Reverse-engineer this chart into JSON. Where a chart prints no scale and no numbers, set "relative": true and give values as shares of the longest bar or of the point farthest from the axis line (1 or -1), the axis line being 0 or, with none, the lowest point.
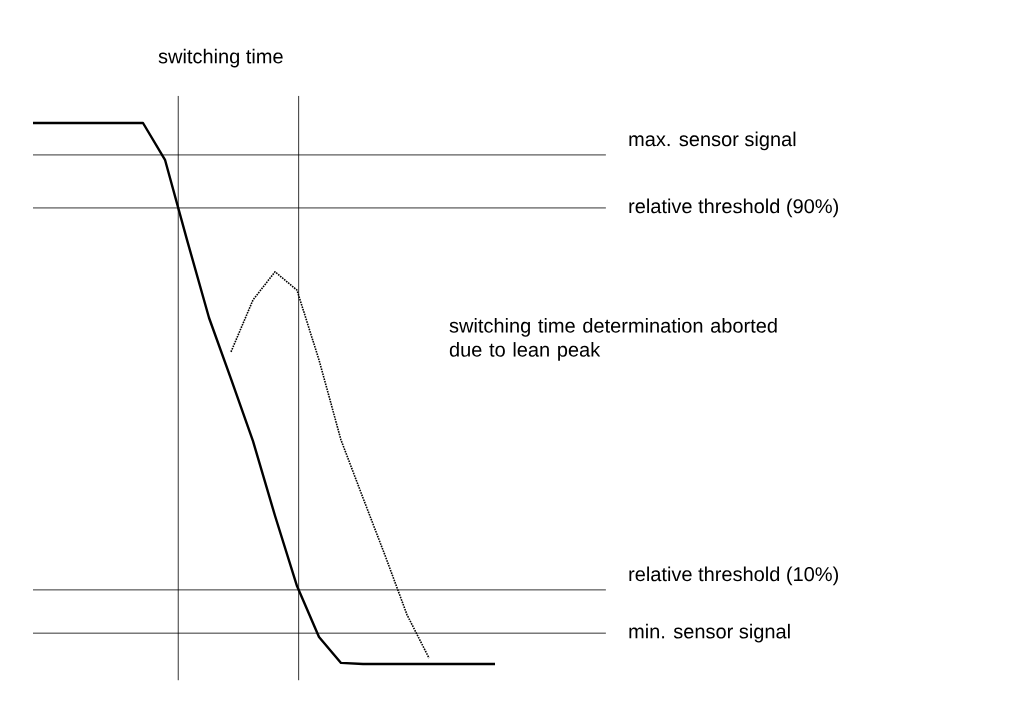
{
  "chart_data": {
    "type": "line",
    "relative": true,
    "categories": [
      null,
      null,
      null,
      null,
      null,
      null,
      null,
      null,
      null,
      null,
      null,
      null,
      null,
      null,
      null,
      null,
      null,
      null,
      null,
      null,
      null,
      null
    ],
    "series": [
      {
        "color": "#000000",
        "line_style": "solid",
        "values": [
          1,
          1,
          1,
          1,
          1,
          1,
          0.932,
          0.784,
          0.64,
          0.527,
          0.412,
          0.274,
          0.144,
          0.05,
          0.002,
          0,
          0,
          0,
          0,
          0,
          0,
          0
        ]
      },
      {
        "color": "#000000",
        "line_style": "dotted",
        "values": [
          null,
          null,
          null,
          null,
          null,
          null,
          null,
          null,
          null,
          0.577,
          0.673,
          0.725,
          0.691,
          0.562,
          0.414,
          0.307,
          0.201,
          0.091,
          0.011,
          null,
          null,
          null
        ]
      }
    ],
    "ref_lines": [
      {
        "axis": "y",
        "value": 0.941,
        "label": "max. sensor signal"
      },
      {
        "axis": "y",
        "value": 0.843,
        "label": "relative threshold (90%)"
      },
      {
        "axis": "y",
        "value": 0.137,
        "label": "relative threshold (10%)"
      },
      {
        "axis": "y",
        "value": 0.057,
        "label": "min. sensor signal"
      }
    ],
    "annotations": [
      "switching time",
      "switching time determination aborted due to lean peak"
    ]
  }
}
